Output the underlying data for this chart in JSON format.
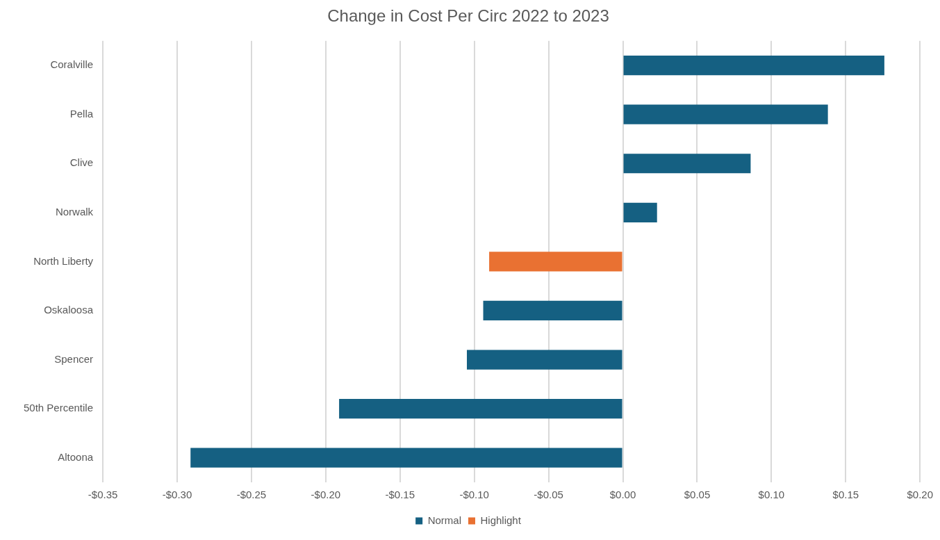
{
  "chart_data": {
    "type": "bar",
    "orientation": "horizontal",
    "title": "Change in Cost Per Circ 2022 to 2023",
    "categories": [
      "Coralville",
      "Pella",
      "Clive",
      "Norwalk",
      "North Liberty",
      "Oskaloosa",
      "Spencer",
      "50th Percentile",
      "Altoona"
    ],
    "series": [
      {
        "name": "Normal",
        "color": "#156082",
        "values": [
          0.176,
          0.138,
          0.086,
          0.023,
          null,
          -0.094,
          -0.105,
          -0.191,
          -0.291
        ]
      },
      {
        "name": "Highlight",
        "color": "#e97132",
        "values": [
          null,
          null,
          null,
          null,
          -0.09,
          null,
          null,
          null,
          null
        ]
      }
    ],
    "xlim": [
      -0.35,
      0.2
    ],
    "xticks": [
      {
        "value": -0.35,
        "label": "-$0.35"
      },
      {
        "value": -0.3,
        "label": "-$0.30"
      },
      {
        "value": -0.25,
        "label": "-$0.25"
      },
      {
        "value": -0.2,
        "label": "-$0.20"
      },
      {
        "value": -0.15,
        "label": "-$0.15"
      },
      {
        "value": -0.1,
        "label": "-$0.10"
      },
      {
        "value": -0.05,
        "label": "-$0.05"
      },
      {
        "value": 0,
        "label": "$0.00"
      },
      {
        "value": 0.05,
        "label": "$0.05"
      },
      {
        "value": 0.1,
        "label": "$0.10"
      },
      {
        "value": 0.15,
        "label": "$0.15"
      },
      {
        "value": 0.2,
        "label": "$0.20"
      }
    ],
    "grid": "x",
    "legend": "bottom"
  }
}
